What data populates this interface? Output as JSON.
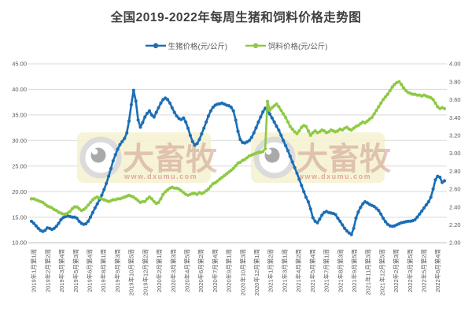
{
  "title": "全国2019-2022年每周生猪和饲料价格走势图",
  "legend": [
    {
      "label": "生猪价格(元/公斤)",
      "color": "#1b6eb5"
    },
    {
      "label": "饲料价格(元/公斤)",
      "color": "#8fc945"
    }
  ],
  "watermark": {
    "text": "大畜牧",
    "url": "www.dxumu.com"
  },
  "colors": {
    "pig_line": "#1b6eb5",
    "feed_line": "#8fc945",
    "gridline": "#d9d9d9",
    "axis_line": "#bfbfbf",
    "axis_text": "#595959",
    "watermark_box": "#f6f1cf"
  },
  "chart_data": {
    "type": "line",
    "title": "全国2019-2022年每周生猪和饲料价格走势图",
    "grid": true,
    "legend_position": "top",
    "x_labels": [
      "2019年1月第1周",
      "2019年2月第2周",
      "2019年3月第4周",
      "2019年5月第3周",
      "2019年6月第4周",
      "2019年8月第1周",
      "2019年9月第3周",
      "2019年10月第5周",
      "2019年12月第2周",
      "2020年2月第1周",
      "2020年3月第3周",
      "2020年4月第5周",
      "2020年6月第2周",
      "2020年7月第4周",
      "2020年9月第1周",
      "2020年10月第3周",
      "2020年12月第1周",
      "2021年1月第2周",
      "2021年3月第1周",
      "2021年4月第2周",
      "2021年5月第4周",
      "2021年7月第1周",
      "2021年8月第3周",
      "2021年9月第5周",
      "2021年11月第3周",
      "2021年12月第5周",
      "2022年2月第3周",
      "2022年3月第5周",
      "2022年5月第2周",
      "2022年6月第4周"
    ],
    "left_axis": {
      "min": 10,
      "max": 45,
      "ticks": [
        "45.00",
        "40.00",
        "35.00",
        "30.00",
        "25.00",
        "20.00",
        "15.00",
        "10.00"
      ]
    },
    "right_axis": {
      "min": 2,
      "max": 4,
      "ticks": [
        "4.00",
        "3.80",
        "3.60",
        "3.40",
        "3.20",
        "3.00",
        "2.80",
        "2.60",
        "2.40",
        "2.20",
        "2.00"
      ]
    },
    "series": [
      {
        "name": "生猪价格(元/公斤)",
        "axis": "left",
        "color": "#1b6eb5",
        "values": [
          14.2,
          13.8,
          13.3,
          12.8,
          12.4,
          12.2,
          12.4,
          12.9,
          12.8,
          12.6,
          12.8,
          13.2,
          13.8,
          14.5,
          14.9,
          15.1,
          15.2,
          15.1,
          15.0,
          15.0,
          14.8,
          14.2,
          13.8,
          13.6,
          13.7,
          14.2,
          15.0,
          15.9,
          16.8,
          17.6,
          18.4,
          19.3,
          20.4,
          21.6,
          23.0,
          24.5,
          26.0,
          27.2,
          28.3,
          29.2,
          29.8,
          30.4,
          31.5,
          33.8,
          37.0,
          39.8,
          37.7,
          34.0,
          32.6,
          33.5,
          34.6,
          35.3,
          35.8,
          35.0,
          34.6,
          35.5,
          36.4,
          37.3,
          38.0,
          38.3,
          38.0,
          37.3,
          36.4,
          35.5,
          34.8,
          34.3,
          34.1,
          34.4,
          33.6,
          32.4,
          31.0,
          29.8,
          29.1,
          29.4,
          30.2,
          31.3,
          32.4,
          33.6,
          34.8,
          35.8,
          36.5,
          36.9,
          37.1,
          37.2,
          37.3,
          37.1,
          36.9,
          36.8,
          36.5,
          35.8,
          34.0,
          31.8,
          30.2,
          29.6,
          29.5,
          29.7,
          30.0,
          30.6,
          31.5,
          32.5,
          33.6,
          34.6,
          35.6,
          36.3,
          35.9,
          35.2,
          34.4,
          33.6,
          32.8,
          32.0,
          31.0,
          30.0,
          29.0,
          28.0,
          26.9,
          25.8,
          24.7,
          23.6,
          22.4,
          21.2,
          20.0,
          18.9,
          18.0,
          16.6,
          14.9,
          14.2,
          13.9,
          14.6,
          15.4,
          15.9,
          16.1,
          15.9,
          15.8,
          15.7,
          15.5,
          14.8,
          14.2,
          13.5,
          12.8,
          12.3,
          11.9,
          11.6,
          12.8,
          14.8,
          16.0,
          16.9,
          17.6,
          18.0,
          17.8,
          17.5,
          17.3,
          17.1,
          16.7,
          16.3,
          15.6,
          14.8,
          14.1,
          13.6,
          13.3,
          13.2,
          13.3,
          13.5,
          13.7,
          13.9,
          14.0,
          14.1,
          14.2,
          14.2,
          14.3,
          14.5,
          15.0,
          15.6,
          16.2,
          16.8,
          17.4,
          18.0,
          18.9,
          20.5,
          22.3,
          23.0,
          22.8,
          21.8,
          22.1
        ]
      },
      {
        "name": "饲料价格(元/公斤)",
        "axis": "right",
        "color": "#8fc945",
        "values": [
          2.49,
          2.49,
          2.48,
          2.47,
          2.46,
          2.45,
          2.43,
          2.41,
          2.4,
          2.39,
          2.37,
          2.36,
          2.34,
          2.33,
          2.32,
          2.32,
          2.33,
          2.35,
          2.38,
          2.4,
          2.4,
          2.38,
          2.36,
          2.37,
          2.39,
          2.42,
          2.45,
          2.48,
          2.5,
          2.51,
          2.5,
          2.49,
          2.48,
          2.47,
          2.46,
          2.47,
          2.48,
          2.48,
          2.49,
          2.49,
          2.5,
          2.51,
          2.52,
          2.53,
          2.52,
          2.51,
          2.49,
          2.47,
          2.45,
          2.46,
          2.46,
          2.49,
          2.51,
          2.49,
          2.46,
          2.44,
          2.45,
          2.49,
          2.54,
          2.57,
          2.59,
          2.61,
          2.62,
          2.61,
          2.61,
          2.6,
          2.58,
          2.56,
          2.54,
          2.53,
          2.54,
          2.55,
          2.55,
          2.54,
          2.56,
          2.55,
          2.56,
          2.58,
          2.6,
          2.63,
          2.66,
          2.67,
          2.69,
          2.71,
          2.73,
          2.75,
          2.77,
          2.79,
          2.81,
          2.83,
          2.86,
          2.89,
          2.9,
          2.92,
          2.93,
          2.95,
          2.97,
          2.98,
          2.99,
          3.0,
          3.01,
          3.01,
          3.02,
          3.05,
          3.58,
          3.48,
          3.51,
          3.53,
          3.55,
          3.52,
          3.48,
          3.44,
          3.4,
          3.35,
          3.3,
          3.27,
          3.24,
          3.22,
          3.25,
          3.29,
          3.31,
          3.3,
          3.25,
          3.2,
          3.23,
          3.25,
          3.23,
          3.24,
          3.26,
          3.25,
          3.23,
          3.24,
          3.26,
          3.25,
          3.24,
          3.25,
          3.27,
          3.26,
          3.28,
          3.29,
          3.27,
          3.26,
          3.28,
          3.3,
          3.31,
          3.33,
          3.35,
          3.34,
          3.36,
          3.38,
          3.4,
          3.44,
          3.48,
          3.52,
          3.56,
          3.6,
          3.63,
          3.66,
          3.7,
          3.74,
          3.77,
          3.79,
          3.8,
          3.77,
          3.73,
          3.7,
          3.68,
          3.67,
          3.66,
          3.66,
          3.65,
          3.65,
          3.64,
          3.65,
          3.64,
          3.63,
          3.62,
          3.6,
          3.56,
          3.52,
          3.5,
          3.51,
          3.5
        ]
      }
    ]
  }
}
